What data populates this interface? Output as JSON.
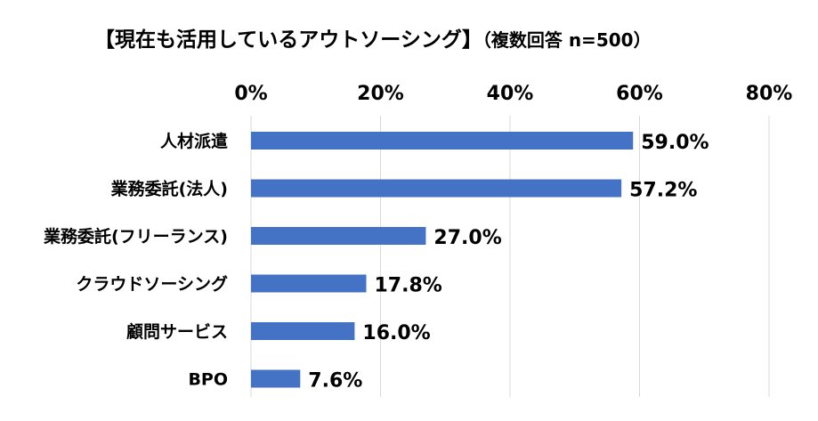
{
  "chart_data": {
    "type": "bar",
    "orientation": "horizontal",
    "title": "【現在も活用しているアウトソーシング】",
    "subtitle": "（複数回答 n=500）",
    "categories": [
      "人材派遣",
      "業務委託(法人)",
      "業務委託(フリーランス)",
      "クラウドソーシング",
      "顧問サービス",
      "BPO"
    ],
    "values": [
      59.0,
      57.2,
      27.0,
      17.8,
      16.0,
      7.6
    ],
    "value_labels": [
      "59.0%",
      "57.2%",
      "27.0%",
      "17.8%",
      "16.0%",
      "7.6%"
    ],
    "xlim": [
      0,
      80
    ],
    "xticks": [
      0,
      20,
      40,
      60,
      80
    ],
    "xtick_labels": [
      "0%",
      "20%",
      "40%",
      "60%",
      "80%"
    ],
    "xlabel": "",
    "ylabel": "",
    "x_axis_position": "top",
    "grid": true,
    "legend": "none",
    "bar_color": "#4472c4",
    "grid_color": "#d9d9d9"
  }
}
